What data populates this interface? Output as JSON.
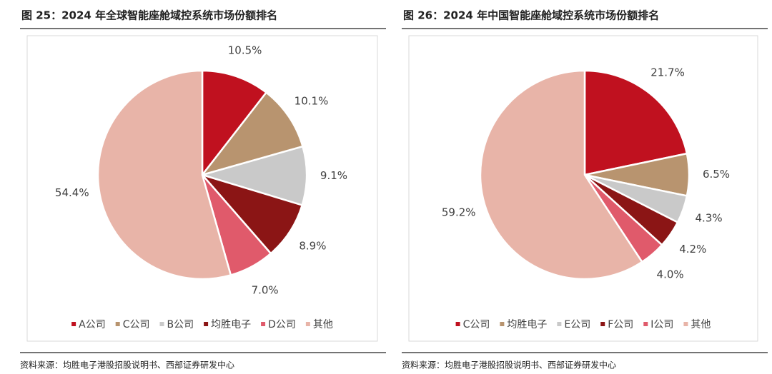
{
  "chart_data": [
    {
      "type": "pie",
      "title": "图 25：2024 年全球智能座舱域控系统市场份额排名",
      "categories": [
        "A公司",
        "C公司",
        "B公司",
        "均胜电子",
        "D公司",
        "其他"
      ],
      "values": [
        10.5,
        10.1,
        9.1,
        8.9,
        7.0,
        54.4
      ],
      "value_labels": [
        "10.5%",
        "10.1%",
        "9.1%",
        "8.9%",
        "7.0%",
        "54.4%"
      ],
      "colors": [
        "#c0111f",
        "#b8946f",
        "#c9c9c9",
        "#8b1515",
        "#e05a6b",
        "#e8b4a8"
      ],
      "source": "资料来源：均胜电子港股招股说明书、西部证券研发中心"
    },
    {
      "type": "pie",
      "title": "图 26：2024 年中国智能座舱域控系统市场份额排名",
      "categories": [
        "C公司",
        "均胜电子",
        "E公司",
        "F公司",
        "I公司",
        "其他"
      ],
      "values": [
        21.7,
        6.5,
        4.3,
        4.2,
        4.0,
        59.2
      ],
      "value_labels": [
        "21.7%",
        "6.5%",
        "4.3%",
        "4.2%",
        "4.0%",
        "59.2%"
      ],
      "colors": [
        "#c0111f",
        "#b8946f",
        "#c9c9c9",
        "#8b1515",
        "#e05a6b",
        "#e8b4a8"
      ],
      "source": "资料来源：均胜电子港股招股说明书、西部证券研发中心"
    }
  ]
}
